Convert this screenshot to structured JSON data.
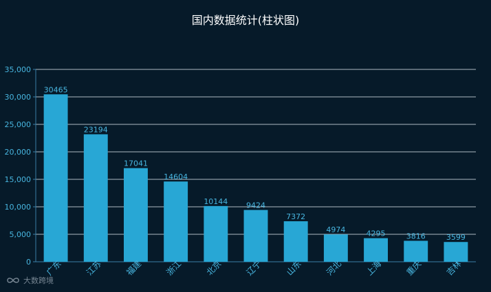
{
  "chart_data": {
    "type": "bar",
    "title": "国内数据统计(柱状图)",
    "categories": [
      "广东",
      "江苏",
      "福建",
      "浙江",
      "北京",
      "辽宁",
      "山东",
      "河北",
      "上海",
      "重庆",
      "吉林"
    ],
    "values": [
      30465,
      23194,
      17041,
      14604,
      10144,
      9424,
      7372,
      4974,
      4295,
      3816,
      3599
    ],
    "ylim": [
      0,
      35000
    ],
    "yticks": [
      "0",
      "5,000",
      "10,000",
      "15,000",
      "20,000",
      "25,000",
      "30,000",
      "35,000"
    ],
    "grid": true,
    "xlabel": "",
    "ylabel": ""
  },
  "watermark": {
    "text": "大数跨境",
    "icon": "infinity-logo-icon"
  },
  "colors": {
    "background": "#061a29",
    "bar": "#28a7d5",
    "label": "#48b6e0",
    "grid": "#cdd7df",
    "axis": "#3a7fa6",
    "tick_text": "#48b6e0"
  }
}
